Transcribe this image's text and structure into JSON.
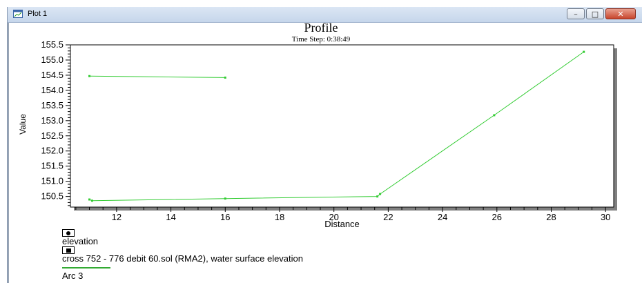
{
  "window": {
    "title": "Plot 1",
    "icon": "plot-window-icon",
    "buttons": {
      "minimize": "minimize-icon",
      "maximize": "maximize-icon",
      "close": "close-icon"
    }
  },
  "chart_data": {
    "type": "line",
    "title": "Profile",
    "subtitle": "Time Step: 0:38:49",
    "xlabel": "Distance",
    "ylabel": "Value",
    "xlim": [
      10.3,
      30.3
    ],
    "ylim": [
      150.15,
      155.5
    ],
    "xticks": [
      12,
      14,
      16,
      18,
      20,
      22,
      24,
      26,
      28,
      30
    ],
    "yticks": [
      150.5,
      151.0,
      151.5,
      152.0,
      152.5,
      153.0,
      153.5,
      154.0,
      154.5,
      155.0,
      155.5
    ],
    "grid": false,
    "line_color": "#33cc33",
    "series": [
      {
        "name": "",
        "x": [
          11.0,
          16.0
        ],
        "y": [
          154.47,
          154.42
        ]
      },
      {
        "name": "",
        "x": [
          11.0,
          11.1,
          16.0,
          21.6,
          21.7,
          25.9,
          29.2
        ],
        "y": [
          150.4,
          150.36,
          150.43,
          150.5,
          150.58,
          153.18,
          155.27
        ]
      }
    ],
    "legend": {
      "placement": "bottom-left",
      "entries": [
        {
          "label": "elevation",
          "symbol": "circle-marker"
        },
        {
          "label": "cross 752 - 776 debit 60.sol (RMA2), water surface elevation",
          "symbol": "square-marker"
        },
        {
          "label": "Arc 3",
          "symbol": "line-swatch"
        }
      ]
    }
  }
}
